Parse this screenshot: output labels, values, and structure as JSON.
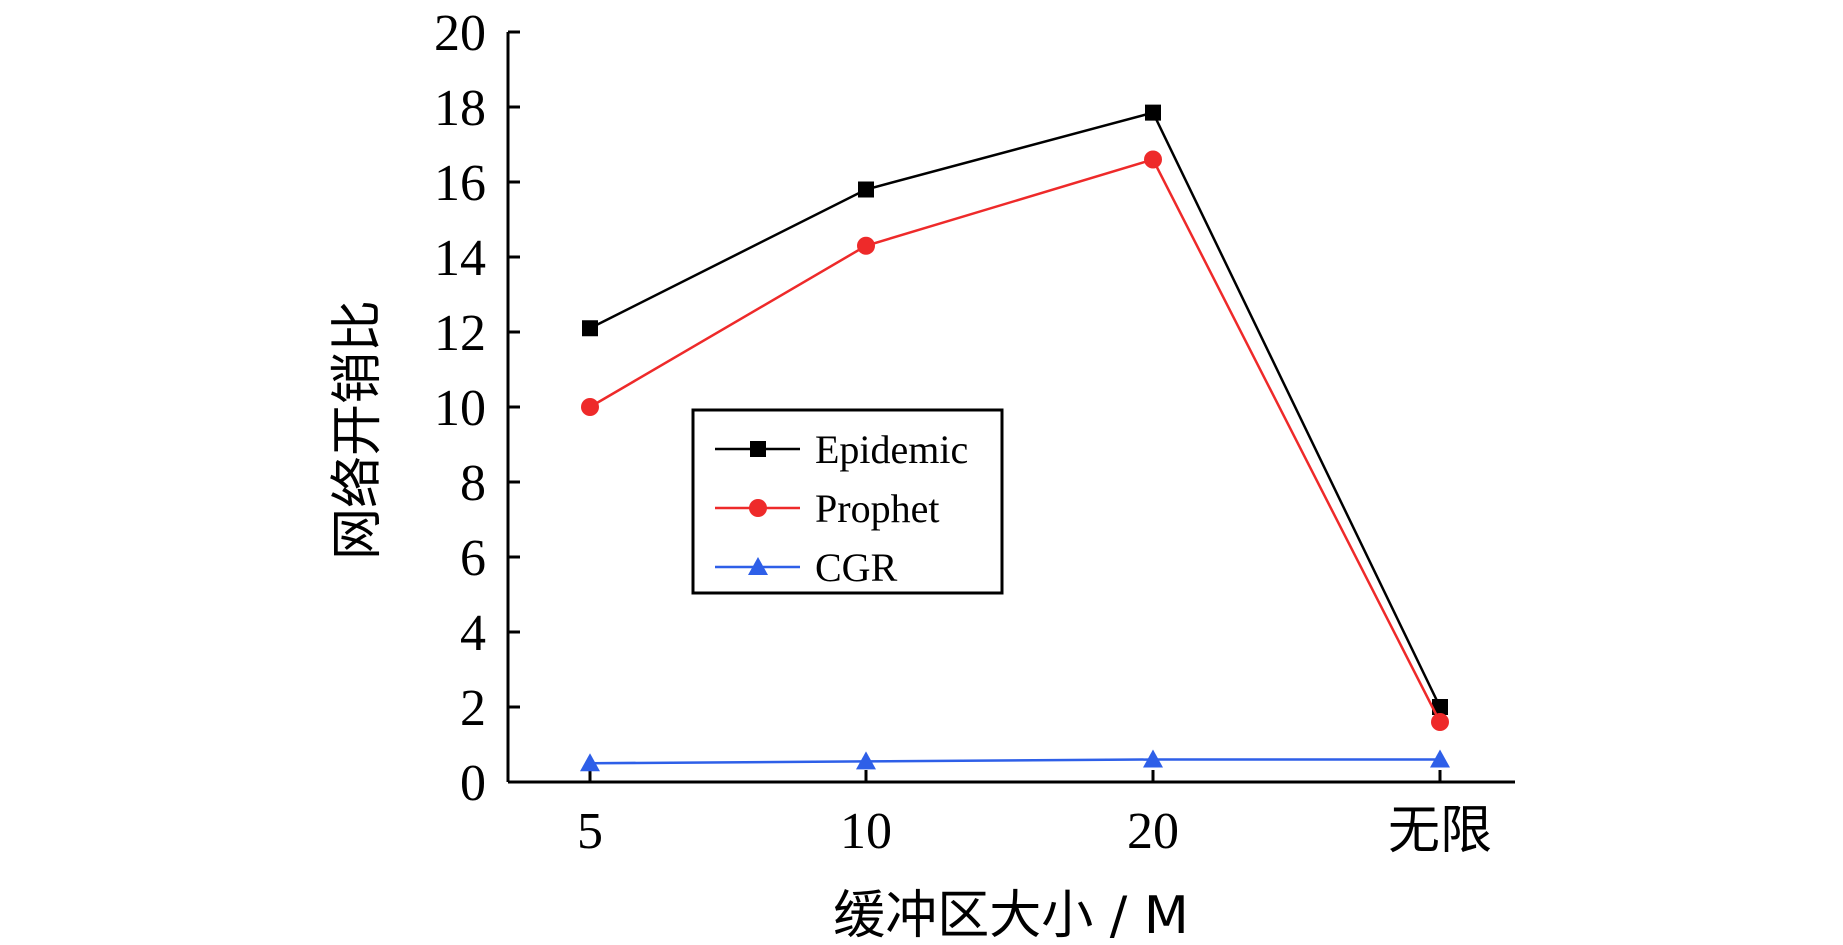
{
  "chart_data": {
    "type": "line",
    "categories": [
      "5",
      "10",
      "20",
      "无限"
    ],
    "series": [
      {
        "name": "Epidemic",
        "values": [
          12.1,
          15.8,
          17.85,
          2.0
        ],
        "color": "#000000",
        "marker": "square"
      },
      {
        "name": "Prophet",
        "values": [
          10.0,
          14.3,
          16.6,
          1.6
        ],
        "color": "#ee2a2a",
        "marker": "circle"
      },
      {
        "name": "CGR",
        "values": [
          0.5,
          0.55,
          0.6,
          0.6
        ],
        "color": "#2e5fe8",
        "marker": "triangle"
      }
    ],
    "xlabel": "缓冲区大小 / M",
    "ylabel": "网络开销比",
    "ylim": [
      0,
      20
    ],
    "yticks": [
      0,
      2,
      4,
      6,
      8,
      10,
      12,
      14,
      16,
      18,
      20
    ],
    "grid": false,
    "legend_position": "center-left inside plot"
  }
}
